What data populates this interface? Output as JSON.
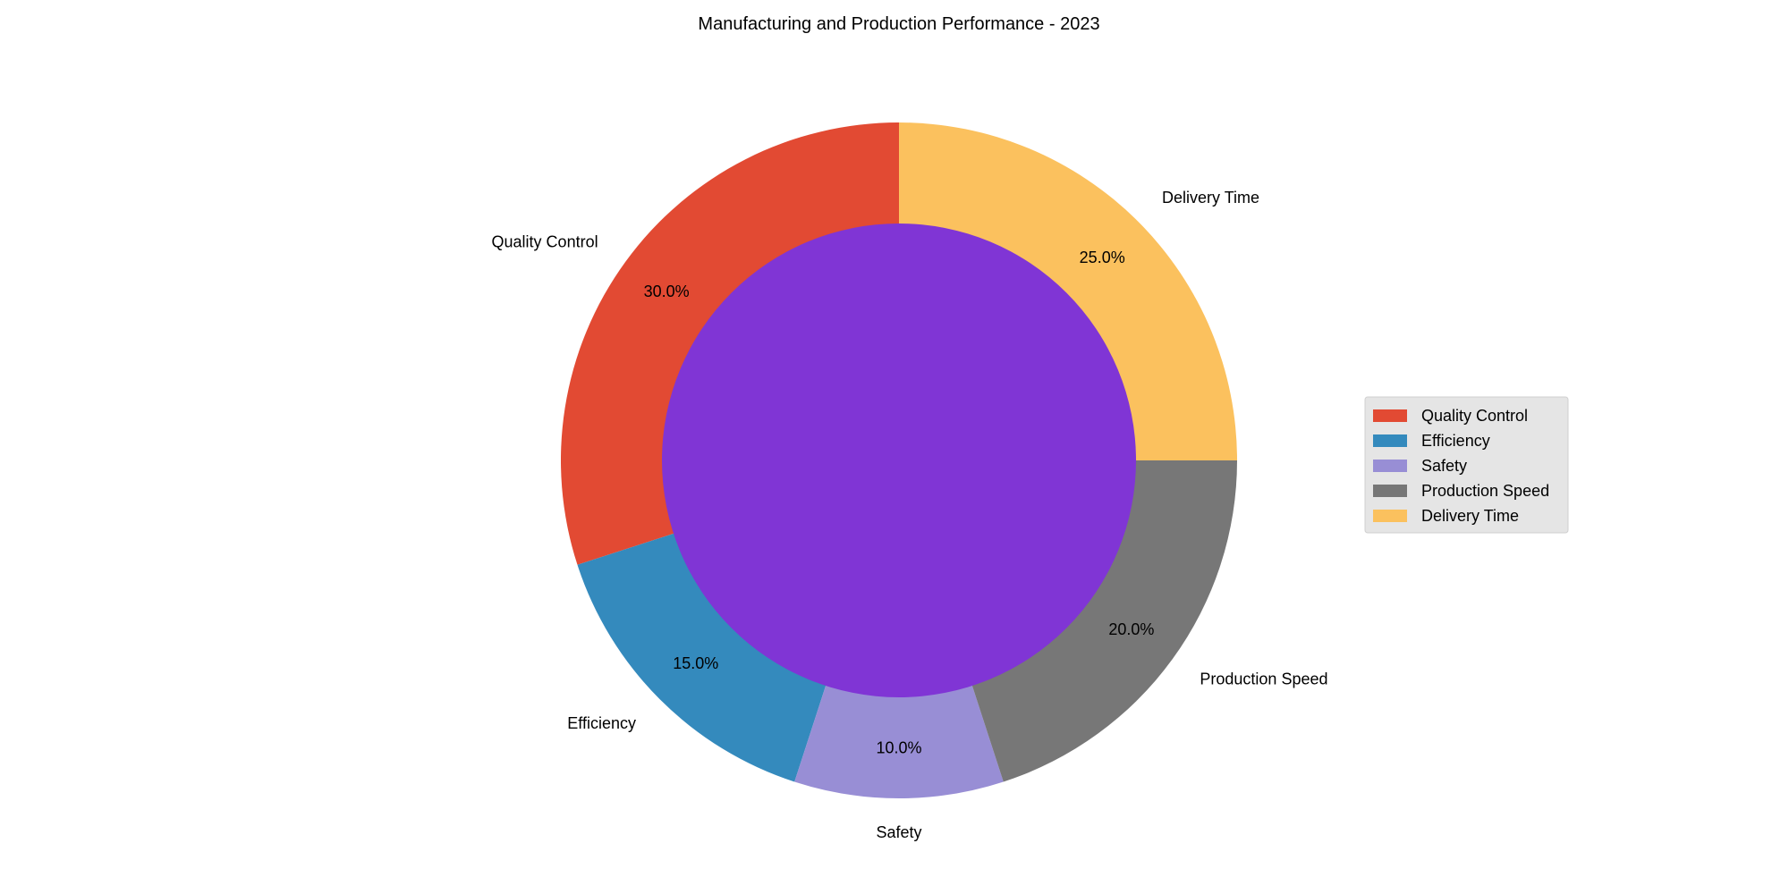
{
  "chart_data": {
    "type": "pie",
    "title": "Manufacturing and Production Performance - 2023",
    "style": "donut",
    "start_angle_deg": 90,
    "direction": "counterclockwise",
    "center_color": "#8035d5",
    "slices": [
      {
        "label": "Quality Control",
        "value": 30,
        "pct_label": "30.0%",
        "color": "#e24a33"
      },
      {
        "label": "Efficiency",
        "value": 15,
        "pct_label": "15.0%",
        "color": "#348abd"
      },
      {
        "label": "Safety",
        "value": 10,
        "pct_label": "10.0%",
        "color": "#988ed5"
      },
      {
        "label": "Production Speed",
        "value": 20,
        "pct_label": "20.0%",
        "color": "#777777"
      },
      {
        "label": "Delivery Time",
        "value": 25,
        "pct_label": "25.0%",
        "color": "#fbc15e"
      }
    ],
    "legend": {
      "placement": "right",
      "entries": [
        "Quality Control",
        "Efficiency",
        "Safety",
        "Production Speed",
        "Delivery Time"
      ]
    }
  }
}
